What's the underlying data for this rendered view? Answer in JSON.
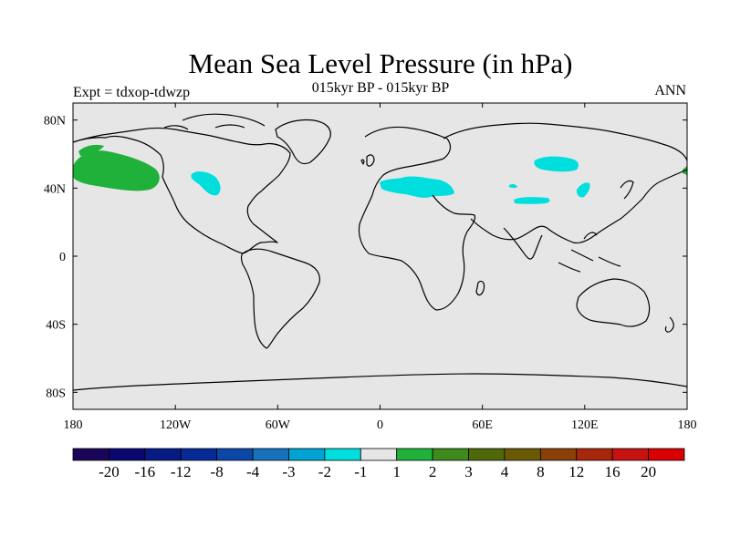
{
  "title": "Mean Sea Level Pressure (in hPa)",
  "subtitle": "015kyr BP - 015kyr BP",
  "left_label": "Expt = tdxop-tdwzp",
  "right_label": "ANN",
  "map": {
    "projection": "cylindrical-equidistant",
    "lat_ticks": [
      {
        "lat": 80,
        "label": "80N"
      },
      {
        "lat": 40,
        "label": "40N"
      },
      {
        "lat": 0,
        "label": "0"
      },
      {
        "lat": -40,
        "label": "40S"
      },
      {
        "lat": -80,
        "label": "80S"
      }
    ],
    "lon_ticks": [
      {
        "lon": -180,
        "label": "180"
      },
      {
        "lon": -120,
        "label": "120W"
      },
      {
        "lon": -60,
        "label": "60W"
      },
      {
        "lon": 0,
        "label": "0"
      },
      {
        "lon": 60,
        "label": "60E"
      },
      {
        "lon": 120,
        "label": "120E"
      },
      {
        "lon": 180,
        "label": "180"
      }
    ],
    "background_color": "#e6e6e6",
    "anomaly_regions": [
      {
        "name": "north-pacific",
        "level": "1..2",
        "color": "#1fb13a"
      },
      {
        "name": "alaska-coast",
        "level": "1..2",
        "color": "#1fb13a"
      },
      {
        "name": "kamchatka-edge",
        "level": "1..2",
        "color": "#1fb13a"
      },
      {
        "name": "central-north-america",
        "level": "-2..-1",
        "color": "#00dede"
      },
      {
        "name": "europe-black-sea",
        "level": "-2..-1",
        "color": "#00dede"
      },
      {
        "name": "siberia",
        "level": "-2..-1",
        "color": "#00dede"
      },
      {
        "name": "central-asia",
        "level": "-2..-1",
        "color": "#00dede"
      },
      {
        "name": "northeast-china",
        "level": "-2..-1",
        "color": "#00dede"
      }
    ]
  },
  "colorbar": {
    "boundary_labels": [
      "-20",
      "-16",
      "-12",
      "-8",
      "-4",
      "-3",
      "-2",
      "-1",
      "1",
      "2",
      "3",
      "4",
      "8",
      "12",
      "16",
      "20"
    ],
    "colors": [
      "#1a0659",
      "#08086e",
      "#061a84",
      "#062b96",
      "#0a47a6",
      "#1672bd",
      "#00a3d1",
      "#00dede",
      "#e6e6e6",
      "#1fb13a",
      "#3e8a1d",
      "#4f6908",
      "#6b5a05",
      "#8a4008",
      "#a8260c",
      "#c81212",
      "#d80000"
    ]
  }
}
